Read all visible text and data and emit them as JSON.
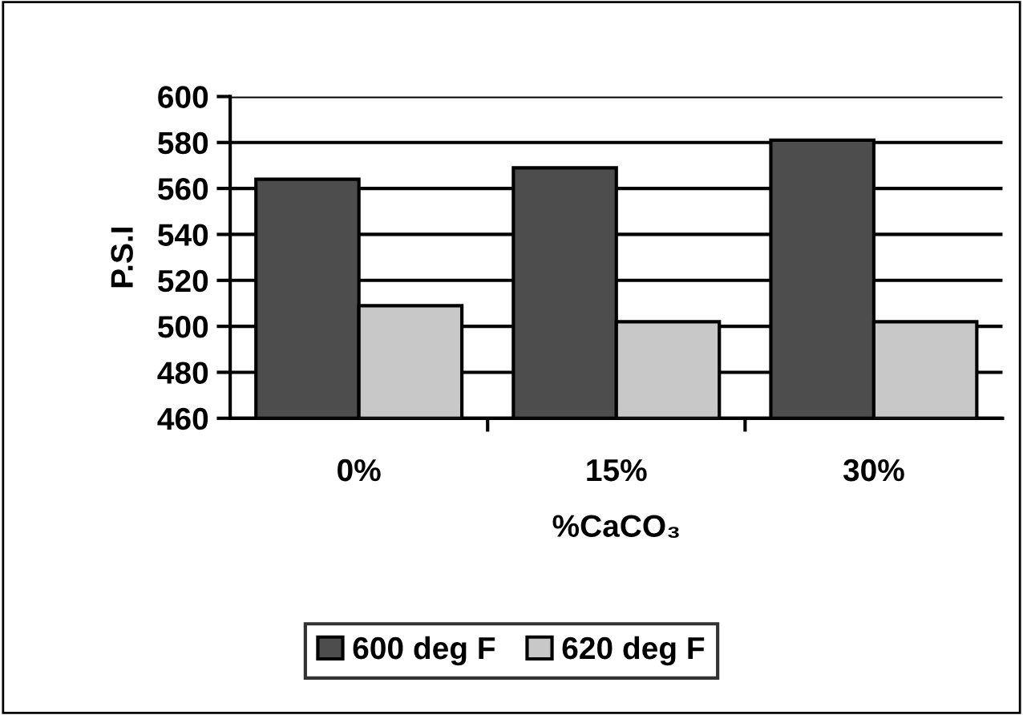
{
  "chart_data": {
    "type": "bar",
    "xlabel": "%CaCO₃",
    "ylabel": "P.S.I",
    "categories": [
      "0%",
      "15%",
      "30%"
    ],
    "series": [
      {
        "name": "600 deg F",
        "color": "#4d4d4d",
        "values": [
          564,
          569,
          581
        ]
      },
      {
        "name": "620 deg F",
        "color": "#c8c8c8",
        "values": [
          509,
          502,
          502
        ]
      }
    ],
    "ylim": [
      460,
      600
    ],
    "yticks": [
      460,
      480,
      500,
      520,
      540,
      560,
      580,
      600
    ],
    "grid": "y",
    "legend": "bottom"
  }
}
